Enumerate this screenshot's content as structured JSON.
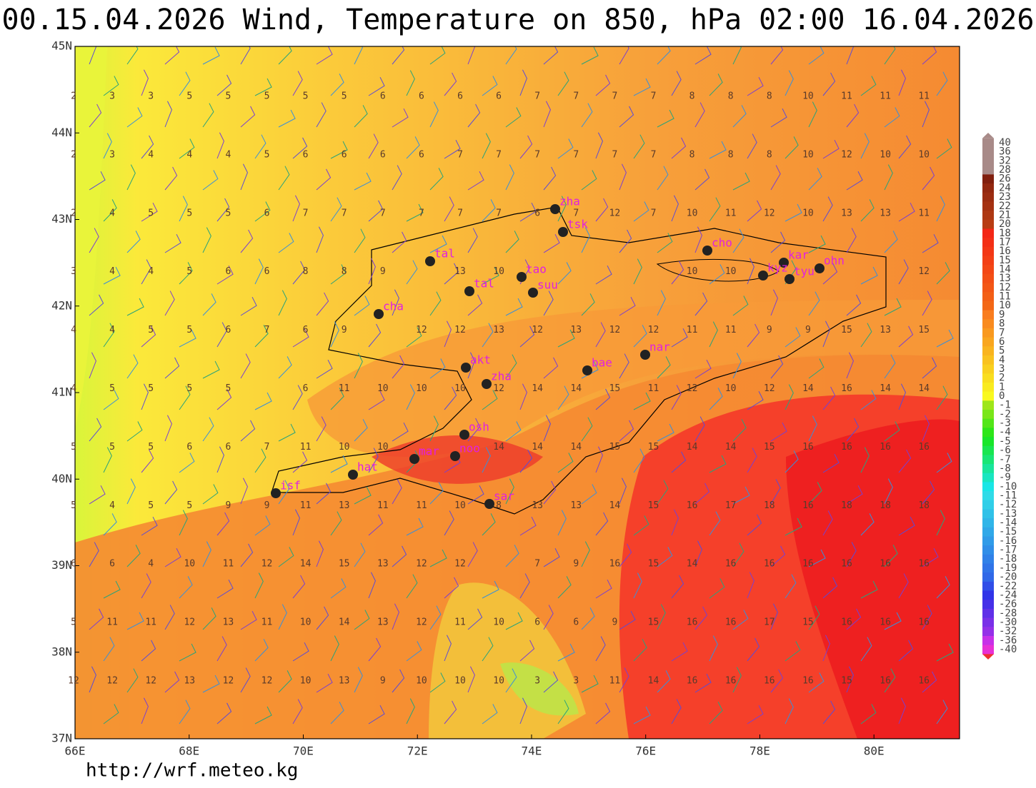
{
  "map": {
    "title": "00.15.04.2026 Wind, Temperature on 850, hPa 02:00 16.04.2026",
    "footer": "http://wrf.meteo.kg",
    "xlim": [
      66,
      81.5
    ],
    "ylim": [
      37,
      45
    ],
    "xticks": [
      {
        "value": 66,
        "label": "66E"
      },
      {
        "value": 68,
        "label": "68E"
      },
      {
        "value": 70,
        "label": "70E"
      },
      {
        "value": 72,
        "label": "72E"
      },
      {
        "value": 74,
        "label": "74E"
      },
      {
        "value": 76,
        "label": "76E"
      },
      {
        "value": 78,
        "label": "78E"
      },
      {
        "value": 80,
        "label": "80E"
      }
    ],
    "yticks": [
      {
        "value": 37,
        "label": "37N"
      },
      {
        "value": 38,
        "label": "38N"
      },
      {
        "value": 39,
        "label": "39N"
      },
      {
        "value": 40,
        "label": "40N"
      },
      {
        "value": 41,
        "label": "41N"
      },
      {
        "value": 42,
        "label": "42N"
      },
      {
        "value": 43,
        "label": "43N"
      },
      {
        "value": 44,
        "label": "44N"
      },
      {
        "value": 45,
        "label": "45N"
      }
    ],
    "stations": [
      "zha",
      "tsk",
      "tal",
      "cho",
      "kar",
      "kyz",
      "tyu",
      "ohn",
      "tao",
      "suu",
      "tal",
      "cha",
      "nar",
      "bae",
      "akt",
      "zha",
      "osh",
      "noo",
      "mar",
      "hat",
      "isf",
      "sar"
    ],
    "temperature_rows": [
      [
        2,
        3,
        3,
        5,
        5,
        5,
        5,
        5,
        6,
        6,
        6,
        6,
        7,
        7,
        7,
        7,
        8,
        8,
        8,
        10,
        11,
        11,
        11
      ],
      [
        2,
        3,
        4,
        4,
        4,
        5,
        6,
        6,
        6,
        6,
        7,
        7,
        7,
        7,
        7,
        7,
        8,
        8,
        8,
        10,
        12,
        10,
        10
      ],
      [
        2,
        4,
        5,
        5,
        5,
        6,
        7,
        7,
        7,
        7,
        7,
        7,
        6,
        7,
        12,
        7,
        10,
        11,
        12,
        10,
        13,
        13,
        11
      ],
      [
        3,
        4,
        4,
        5,
        6,
        6,
        8,
        8,
        9,
        null,
        13,
        10,
        null,
        null,
        null,
        null,
        10,
        10,
        null,
        null,
        null,
        null,
        12
      ],
      [
        4,
        4,
        5,
        5,
        6,
        7,
        6,
        9,
        null,
        12,
        12,
        13,
        12,
        13,
        12,
        12,
        11,
        11,
        9,
        9,
        15,
        13,
        15
      ],
      [
        4,
        5,
        5,
        5,
        5,
        null,
        6,
        11,
        10,
        10,
        10,
        12,
        14,
        14,
        15,
        11,
        12,
        10,
        12,
        14,
        16,
        14,
        14
      ],
      [
        5,
        5,
        5,
        6,
        6,
        7,
        11,
        10,
        10,
        null,
        null,
        14,
        14,
        14,
        15,
        15,
        14,
        14,
        15,
        16,
        16,
        16,
        16
      ],
      [
        5,
        4,
        5,
        5,
        9,
        9,
        11,
        13,
        11,
        11,
        10,
        8,
        13,
        13,
        14,
        15,
        16,
        17,
        18,
        16,
        18,
        18,
        18
      ],
      [
        6,
        6,
        4,
        10,
        11,
        12,
        14,
        15,
        13,
        12,
        12,
        null,
        7,
        9,
        16,
        15,
        14,
        16,
        16,
        16,
        16,
        16,
        16
      ],
      [
        5,
        11,
        11,
        12,
        13,
        11,
        10,
        14,
        13,
        12,
        11,
        10,
        6,
        6,
        9,
        15,
        16,
        16,
        17,
        15,
        16,
        16,
        16
      ],
      [
        12,
        12,
        12,
        13,
        12,
        12,
        10,
        13,
        9,
        10,
        10,
        10,
        3,
        3,
        11,
        14,
        16,
        16,
        16,
        16,
        15,
        16,
        16
      ]
    ],
    "colorbar": [
      40,
      36,
      32,
      28,
      26,
      24,
      23,
      22,
      21,
      20,
      18,
      17,
      16,
      15,
      14,
      13,
      12,
      11,
      10,
      9,
      8,
      7,
      6,
      5,
      4,
      3,
      2,
      1,
      0,
      -1,
      -2,
      -3,
      -4,
      -5,
      -6,
      -7,
      -8,
      -9,
      -10,
      -11,
      -12,
      -13,
      -14,
      -15,
      -16,
      -17,
      -18,
      -19,
      -20,
      -22,
      -24,
      -26,
      -28,
      -30,
      -32,
      -36,
      -40
    ]
  }
}
